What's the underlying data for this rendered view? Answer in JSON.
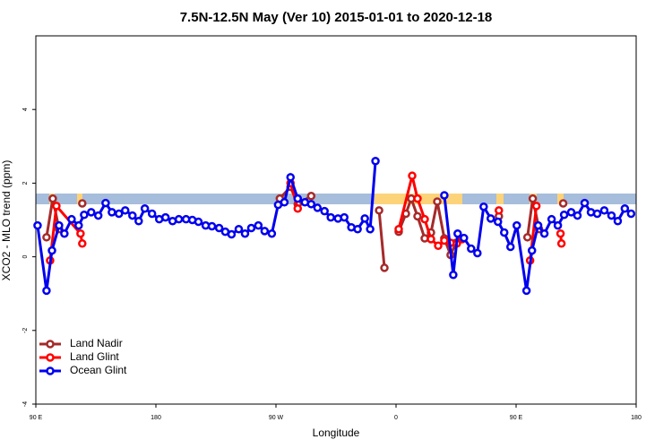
{
  "chart_data": {
    "type": "line",
    "title": "7.5N-12.5N May (Ver 10)   2015-01-01 to 2020-12-18",
    "xlabel": "Longitude",
    "ylabel": "XCO2 - MLO trend (ppm)",
    "xlim": [
      90,
      540
    ],
    "xticks": [
      {
        "value": 90,
        "label": "90 E"
      },
      {
        "value": 180,
        "label": "180"
      },
      {
        "value": 270,
        "label": "90 W"
      },
      {
        "value": 360,
        "label": "0"
      },
      {
        "value": 450,
        "label": "90 E"
      },
      {
        "value": 540,
        "label": "180"
      }
    ],
    "ylim": [
      -4,
      6
    ],
    "yticks": [
      -4,
      -2,
      0,
      2,
      4
    ],
    "legend": "lower left",
    "series": [
      {
        "name": "Land Nadir",
        "color": "#a52a2a",
        "x": [
          98.0,
          102.7,
          107.4,
          null,
          124.8,
          null,
          272.9,
          280.9,
          286.3,
          296.4,
          null,
          347.3,
          351.3,
          null,
          362.0,
          367.4,
          371.4,
          376.1,
          381.5,
          386.2,
          390.9,
          396.2,
          400.9,
          404.9,
          null,
          437.1,
          null,
          458.5,
          462.5,
          467.2,
          null,
          485.3
        ],
        "values": [
          0.53,
          1.58,
          0.75,
          null,
          1.45,
          null,
          1.58,
          1.9,
          1.43,
          1.65,
          null,
          1.26,
          -0.3,
          null,
          0.68,
          1.17,
          1.58,
          1.1,
          0.5,
          0.66,
          1.5,
          0.5,
          0.05,
          0.38,
          null,
          1.1,
          null,
          0.53,
          1.58,
          0.75,
          null,
          1.45
        ]
      },
      {
        "name": "Land Glint",
        "color": "#ff0000",
        "x": [
          100.7,
          105.4,
          123.5,
          124.8,
          null,
          280.9,
          286.3,
          null,
          362.0,
          372.1,
          376.1,
          381.5,
          386.2,
          391.6,
          396.2,
          400.9,
          405.6,
          409.6,
          null,
          437.1,
          null,
          460.5,
          465.2,
          null,
          483.3,
          484.0
        ],
        "values": [
          -0.1,
          1.38,
          0.63,
          0.36,
          null,
          2.0,
          1.31,
          null,
          0.75,
          2.2,
          1.58,
          1.02,
          0.48,
          0.3,
          0.44,
          0.38,
          0.36,
          0.48,
          null,
          1.26,
          null,
          -0.1,
          1.38,
          null,
          0.63,
          0.36
        ]
      },
      {
        "name": "Ocean Glint",
        "color": "#0000ee",
        "x": [
          91.3,
          98.0,
          102.1,
          107.4,
          111.4,
          116.8,
          122.1,
          126.2,
          131.5,
          136.8,
          142.3,
          147.0,
          152.3,
          157.0,
          162.4,
          167.1,
          171.7,
          177.1,
          182.5,
          187.2,
          192.5,
          197.2,
          202.6,
          207.3,
          211.9,
          217.3,
          222.0,
          227.4,
          232.0,
          236.7,
          242.1,
          246.8,
          251.5,
          256.8,
          261.5,
          266.9,
          271.6,
          276.3,
          280.9,
          286.3,
          291.7,
          296.4,
          301.1,
          306.4,
          311.1,
          316.5,
          321.2,
          326.5,
          331.2,
          336.6,
          340.6,
          344.6,
          null,
          396.2,
          402.9,
          406.2,
          410.9,
          416.3,
          421.0,
          425.7,
          431.0,
          436.4,
          441.1,
          445.8,
          450.5,
          457.8,
          461.9,
          466.5,
          471.2,
          476.6,
          481.3,
          486.0,
          491.3,
          496.0,
          501.4,
          506.1,
          510.8,
          516.1,
          521.5,
          526.2,
          531.5,
          536.2
        ],
        "values": [
          0.85,
          -0.92,
          0.17,
          0.85,
          0.63,
          1.02,
          0.85,
          1.14,
          1.21,
          1.12,
          1.46,
          1.21,
          1.17,
          1.26,
          1.12,
          0.97,
          1.31,
          1.17,
          1.02,
          1.07,
          0.97,
          1.02,
          1.02,
          1.0,
          0.95,
          0.85,
          0.83,
          0.78,
          0.68,
          0.61,
          0.75,
          0.63,
          0.78,
          0.85,
          0.7,
          0.63,
          1.41,
          1.48,
          2.16,
          1.58,
          1.48,
          1.43,
          1.33,
          1.24,
          1.07,
          1.04,
          1.07,
          0.8,
          0.75,
          1.04,
          0.75,
          2.6,
          null,
          1.67,
          -0.49,
          0.63,
          0.51,
          0.22,
          0.1,
          1.36,
          1.04,
          0.95,
          0.66,
          0.27,
          0.85,
          -0.92,
          0.17,
          0.85,
          0.63,
          1.02,
          0.85,
          1.14,
          1.21,
          1.12,
          1.46,
          1.21,
          1.17,
          1.26,
          1.12,
          0.97,
          1.31,
          1.17
        ]
      }
    ]
  }
}
